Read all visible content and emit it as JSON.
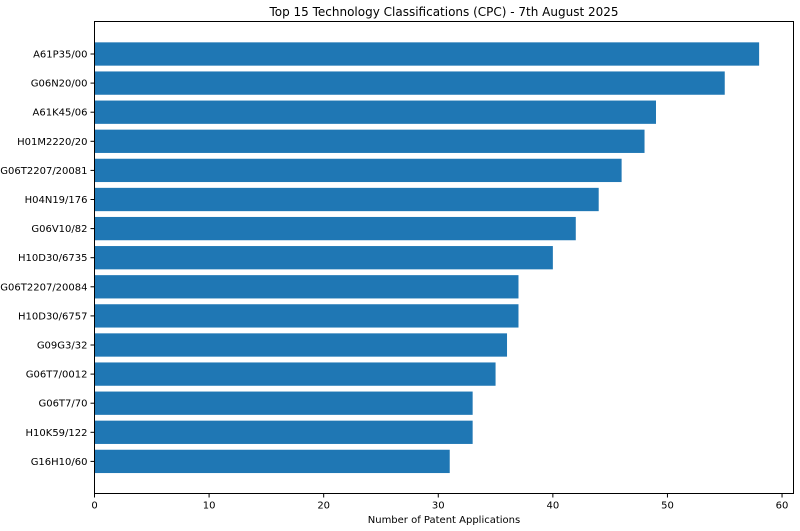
{
  "chart_data": {
    "type": "bar",
    "orientation": "horizontal",
    "title": "Top 15 Technology Classifications (CPC) - 7th August 2025",
    "xlabel": "Number of Patent Applications",
    "ylabel": "",
    "categories": [
      "A61P35/00",
      "G06N20/00",
      "A61K45/06",
      "H01M2220/20",
      "G06T2207/20081",
      "H04N19/176",
      "G06V10/82",
      "H10D30/6735",
      "G06T2207/20084",
      "H10D30/6757",
      "G09G3/32",
      "G06T7/0012",
      "G06T7/70",
      "H10K59/122",
      "G16H10/60"
    ],
    "values": [
      58,
      55,
      49,
      48,
      46,
      44,
      42,
      40,
      37,
      37,
      36,
      35,
      33,
      33,
      31
    ],
    "xlim": [
      0,
      61
    ],
    "xticks": [
      0,
      10,
      20,
      30,
      40,
      50,
      60
    ],
    "bar_color": "#1f77b4",
    "grid": false
  }
}
